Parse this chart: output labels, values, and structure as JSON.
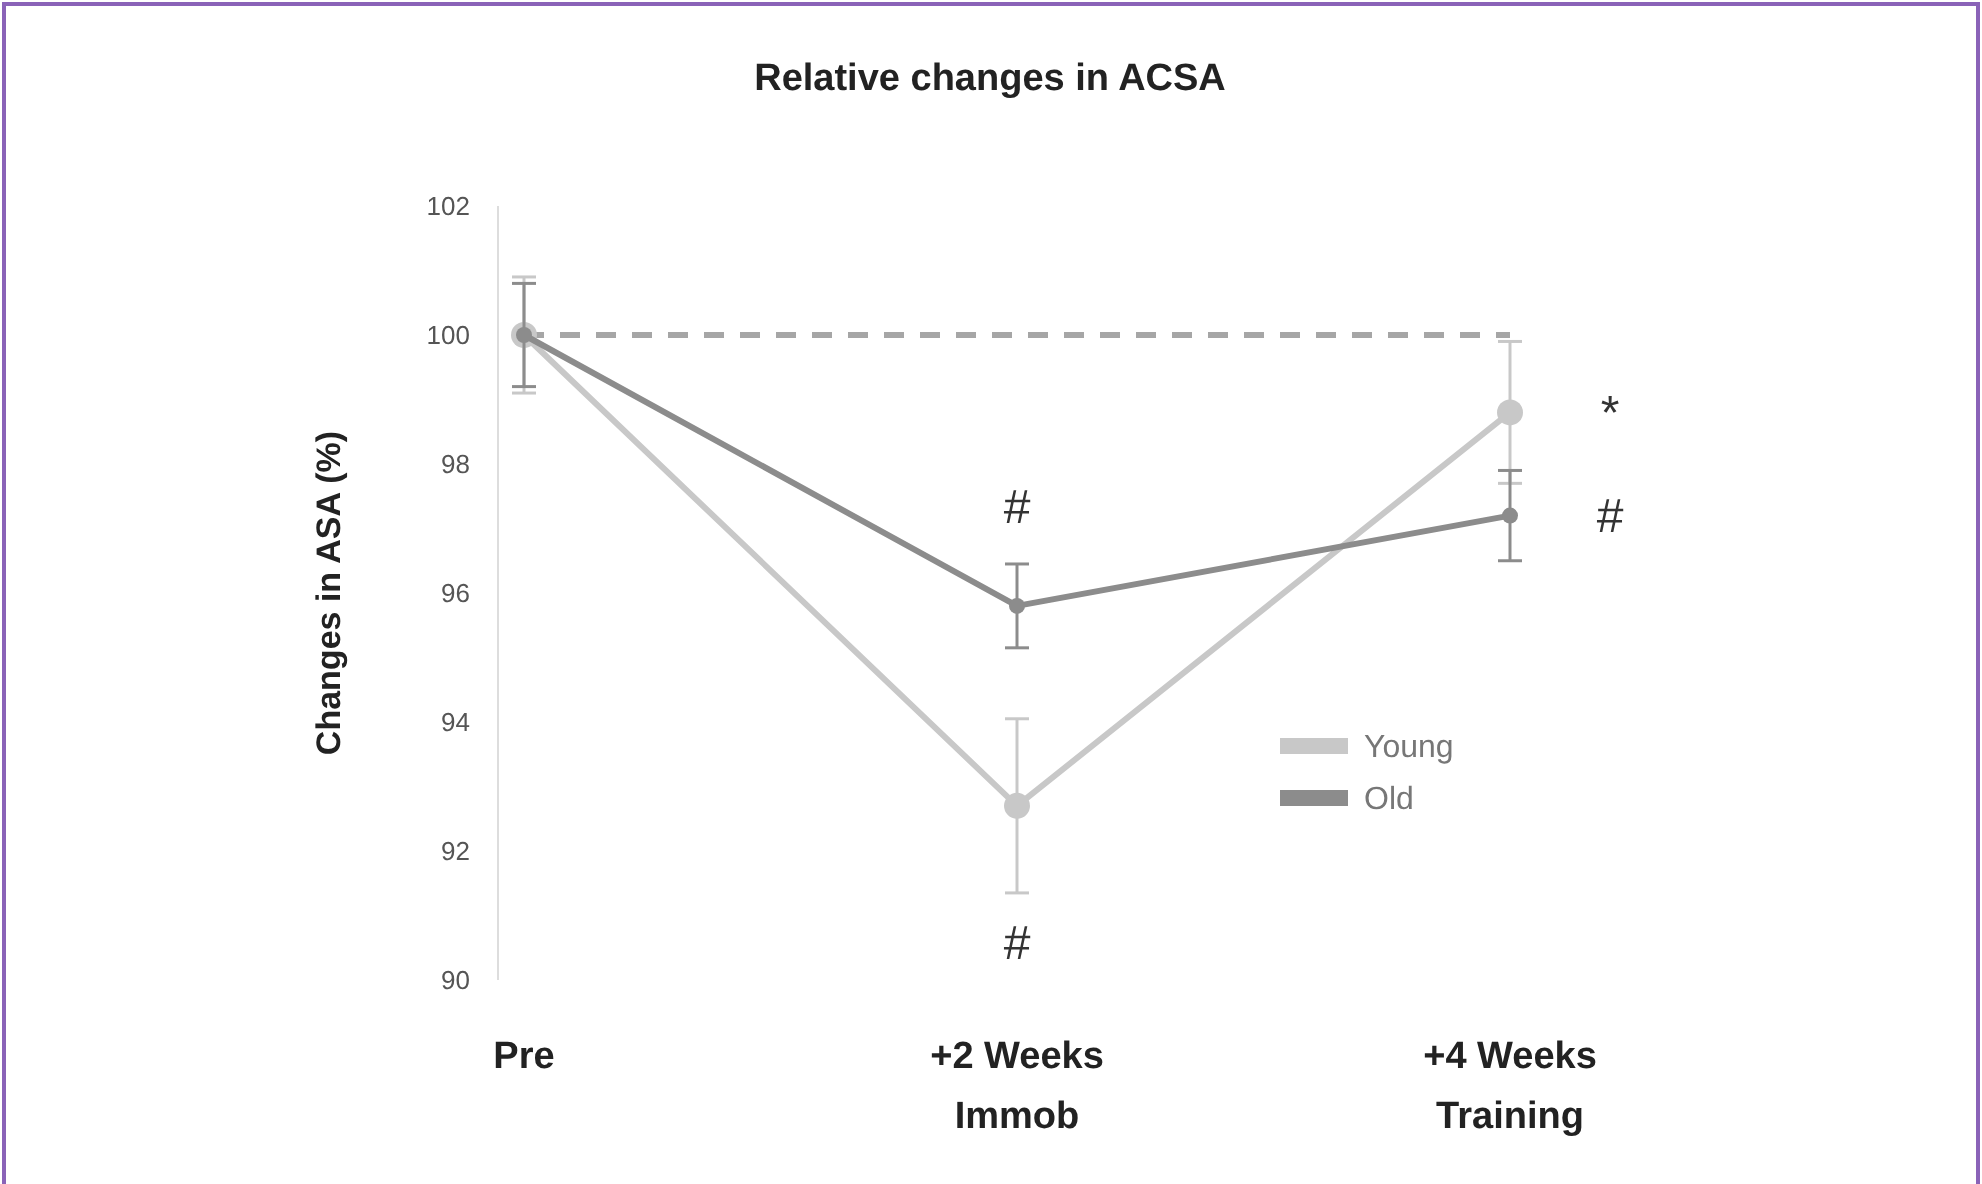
{
  "chart_data": {
    "type": "line",
    "title": "Relative changes in ACSA",
    "ylabel": "Changes in ASA (%)",
    "categories": [
      "Pre",
      "+2 Weeks\nImmob",
      "+4 Weeks\nTraining"
    ],
    "series": [
      {
        "name": "Young",
        "color": "#c8c8c8",
        "values": [
          100,
          92.7,
          98.8
        ],
        "errors": [
          0.9,
          1.35,
          1.1
        ]
      },
      {
        "name": "Old",
        "color": "#8c8c8c",
        "values": [
          100,
          95.8,
          97.2
        ],
        "errors": [
          0.8,
          0.65,
          0.7
        ]
      }
    ],
    "ylim": [
      90,
      102
    ],
    "yticks": [
      90,
      92,
      94,
      96,
      98,
      100,
      102
    ],
    "grid": false,
    "legend": "bottom right",
    "marker": "circle",
    "line_style": "solid",
    "ref_lines": [
      {
        "axis": "y",
        "value": 100,
        "color": "#a6a6a6",
        "line_style": "dashed"
      }
    ],
    "annotations": [
      {
        "text": "#",
        "x": "+2 Weeks\nImmob",
        "y": 95.8
      },
      {
        "text": "#",
        "x": "+2 Weeks\nImmob",
        "y": 92.7
      },
      {
        "text": "*",
        "x": "+4 Weeks\nTraining",
        "y": 98.8
      },
      {
        "text": "#",
        "x": "+4 Weeks\nTraining",
        "y": 97.2
      }
    ]
  }
}
